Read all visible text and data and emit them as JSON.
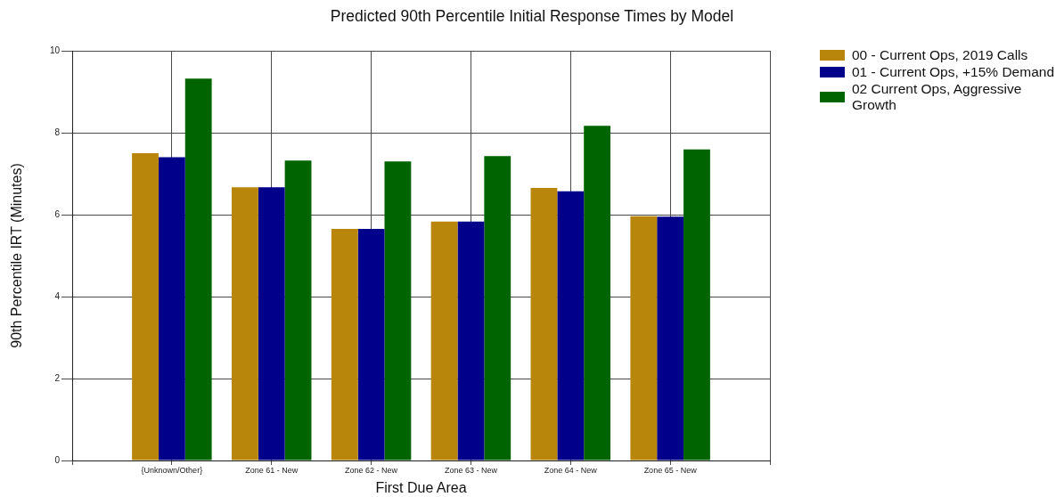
{
  "chart_data": {
    "type": "bar",
    "title": "Predicted 90th Percentile Initial Response Times by Model",
    "xlabel": "First Due Area",
    "ylabel": "90th Percentile IRT (Minutes)",
    "categories": [
      "{Unknown/Other}",
      "Zone 61 - New",
      "Zone 62 - New",
      "Zone 63 - New",
      "Zone 64 - New",
      "Zone 65 - New"
    ],
    "series": [
      {
        "name": "00 - Current Ops, 2019 Calls",
        "color": "#b8860b",
        "values": [
          7.5,
          6.67,
          5.65,
          5.83,
          6.65,
          5.96
        ]
      },
      {
        "name": "01 - Current Ops, +15% Demand",
        "color": "#00008b",
        "values": [
          7.4,
          6.67,
          5.65,
          5.83,
          6.57,
          5.95
        ]
      },
      {
        "name": "02 Current Ops, Aggressive Growth",
        "color": "#006400",
        "values": [
          9.32,
          7.32,
          7.3,
          7.43,
          8.17,
          7.59
        ]
      }
    ],
    "ylim": [
      0,
      10
    ],
    "yticks": [
      0,
      2,
      4,
      6,
      8,
      10
    ],
    "grid": true,
    "legend": "top right"
  }
}
